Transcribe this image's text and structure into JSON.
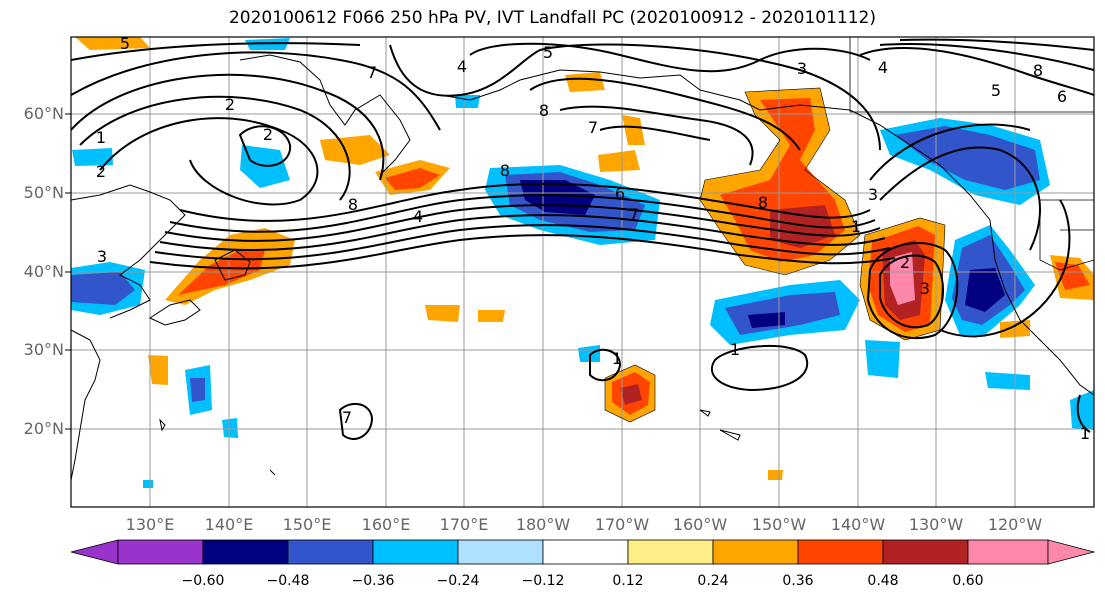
{
  "title": "2020100612 F066 250 hPa PV, IVT Landfall PC (2020100912 - 2020101112)",
  "map": {
    "lat_labels": [
      "60°N",
      "50°N",
      "40°N",
      "30°N",
      "20°N"
    ],
    "lon_labels": [
      "130°E",
      "140°E",
      "150°E",
      "160°E",
      "170°E",
      "180°W",
      "170°W",
      "160°W",
      "150°W",
      "140°W",
      "130°W",
      "120°W"
    ]
  },
  "contour_labels": [
    "5",
    "7",
    "4",
    "5",
    "3",
    "4",
    "5",
    "6",
    "8",
    "2",
    "2",
    "1",
    "2",
    "8",
    "7",
    "8",
    "6",
    "7",
    "8",
    "4",
    "8",
    "3",
    "1",
    "3",
    "2",
    "3",
    "1",
    "1",
    "7",
    "1"
  ],
  "colorbar": {
    "colors": [
      "#9933cc",
      "#000080",
      "#3355cc",
      "#00bfff",
      "#b0e0ff",
      "#ffffff",
      "#ffee88",
      "#ffa500",
      "#ff4500",
      "#b22222",
      "#ff88aa"
    ],
    "tick_labels": [
      "−0.60",
      "−0.48",
      "−0.36",
      "−0.24",
      "−0.12",
      "0.12",
      "0.24",
      "0.36",
      "0.48",
      "0.60"
    ]
  }
}
